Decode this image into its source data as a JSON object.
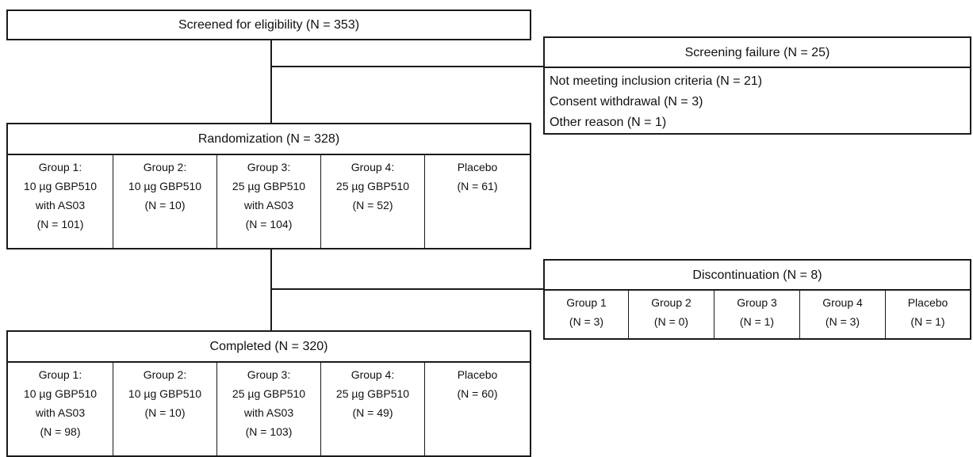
{
  "screened": "Screened for eligibility (N = 353)",
  "failure": {
    "title": "Screening failure (N = 25)",
    "reasons": [
      "Not meeting inclusion criteria (N = 21)",
      "Consent withdrawal (N = 3)",
      "Other reason (N = 1)"
    ]
  },
  "randomization": {
    "title": "Randomization (N = 328)",
    "groups": [
      [
        "Group 1:",
        "10 µg GBP510",
        "with AS03",
        "(N = 101)"
      ],
      [
        "Group 2:",
        "10 µg GBP510",
        "(N = 10)"
      ],
      [
        "Group 3:",
        "25 µg GBP510",
        "with AS03",
        "(N = 104)"
      ],
      [
        "Group 4:",
        "25 µg GBP510",
        "(N = 52)"
      ],
      [
        "Placebo",
        "(N = 61)"
      ]
    ]
  },
  "discontinuation": {
    "title": "Discontinuation (N = 8)",
    "groups": [
      [
        "Group 1",
        "(N = 3)"
      ],
      [
        "Group 2",
        "(N = 0)"
      ],
      [
        "Group 3",
        "(N = 1)"
      ],
      [
        "Group 4",
        "(N = 3)"
      ],
      [
        "Placebo",
        "(N = 1)"
      ]
    ]
  },
  "completed": {
    "title": "Completed (N = 320)",
    "groups": [
      [
        "Group 1:",
        "10 µg GBP510",
        "with AS03",
        "(N = 98)"
      ],
      [
        "Group 2:",
        "10 µg GBP510",
        "(N = 10)"
      ],
      [
        "Group 3:",
        "25 µg GBP510",
        "with AS03",
        "(N = 103)"
      ],
      [
        "Group 4:",
        "25 µg GBP510",
        "(N = 49)"
      ],
      [
        "Placebo",
        "(N = 60)"
      ]
    ]
  }
}
